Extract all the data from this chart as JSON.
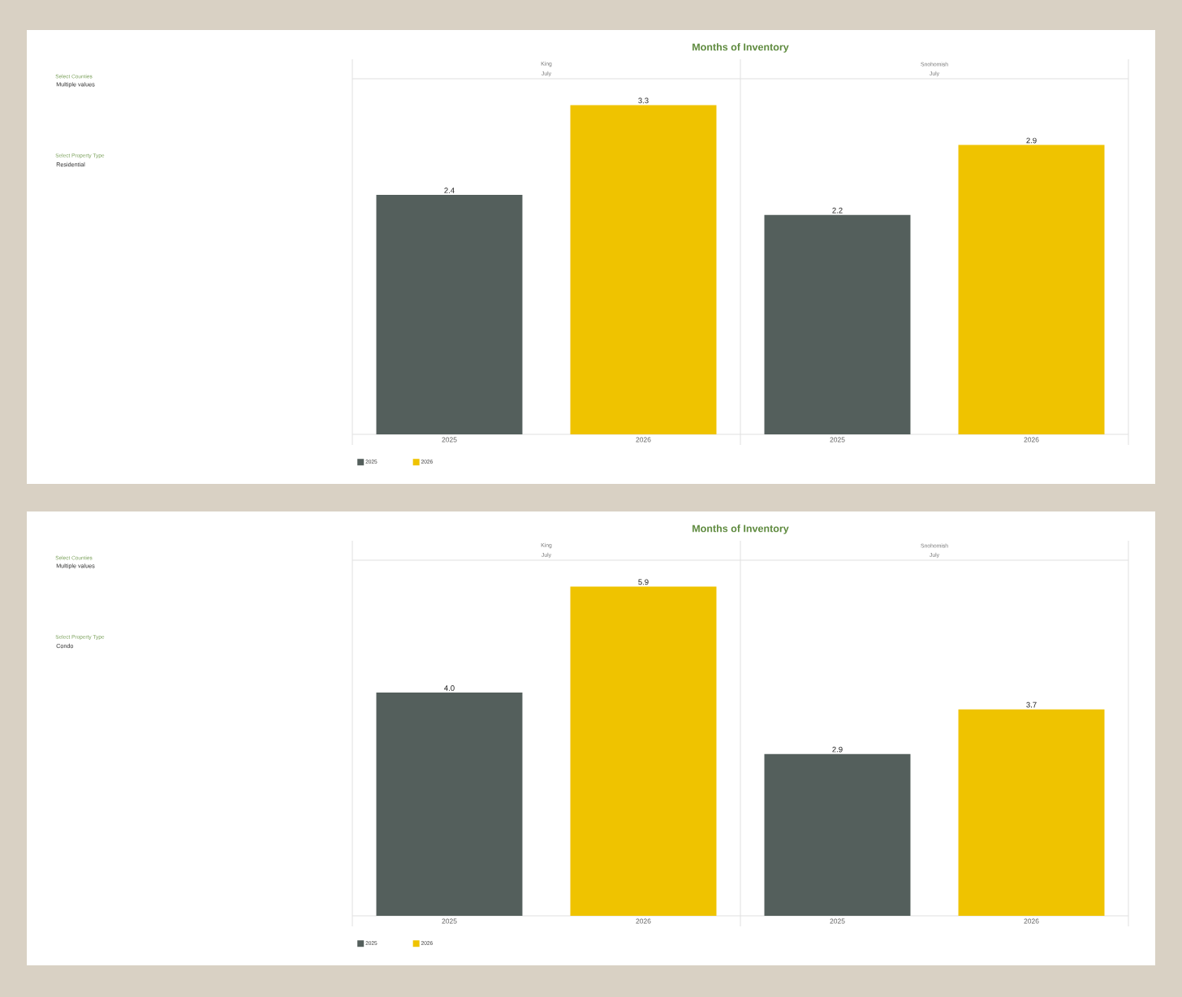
{
  "chart_data": [
    {
      "type": "bar",
      "title": "Months of Inventory",
      "categories": [
        "2025",
        "2026",
        "2025",
        "2026"
      ],
      "series": [
        {
          "name": "2025",
          "color": "#545f5c",
          "values": [
            2.4,
            null,
            2.2,
            null
          ]
        },
        {
          "name": "2026",
          "color": "#efc300",
          "values": [
            null,
            3.3,
            null,
            2.9
          ]
        }
      ],
      "data_labels": true,
      "legend": "bottom left",
      "tick_labels": "x",
      "annotations": [
        "Select Counties",
        "Multiple values",
        "Select Property Type",
        "Residential",
        "King",
        "July",
        "Snohomish",
        "July"
      ]
    },
    {
      "type": "bar",
      "title": "Months of Inventory",
      "categories": [
        "2025",
        "2026",
        "2025",
        "2026"
      ],
      "series": [
        {
          "name": "2025",
          "color": "#545f5c",
          "values": [
            4.0,
            null,
            2.9,
            null
          ],
          "value_labels": [
            "4.0",
            null,
            "2.9",
            null
          ]
        },
        {
          "name": "2026",
          "color": "#efc300",
          "values": [
            null,
            5.9,
            null,
            3.7
          ],
          "value_labels": [
            null,
            "5.9",
            null,
            "3.7"
          ]
        }
      ],
      "legend": "bottom left",
      "tick_labels": "x",
      "annotations": [
        "Select Counties",
        "Multiple values",
        "Select Property Type",
        "Condo",
        "King",
        "July",
        "Snohomish",
        "July"
      ]
    }
  ]
}
